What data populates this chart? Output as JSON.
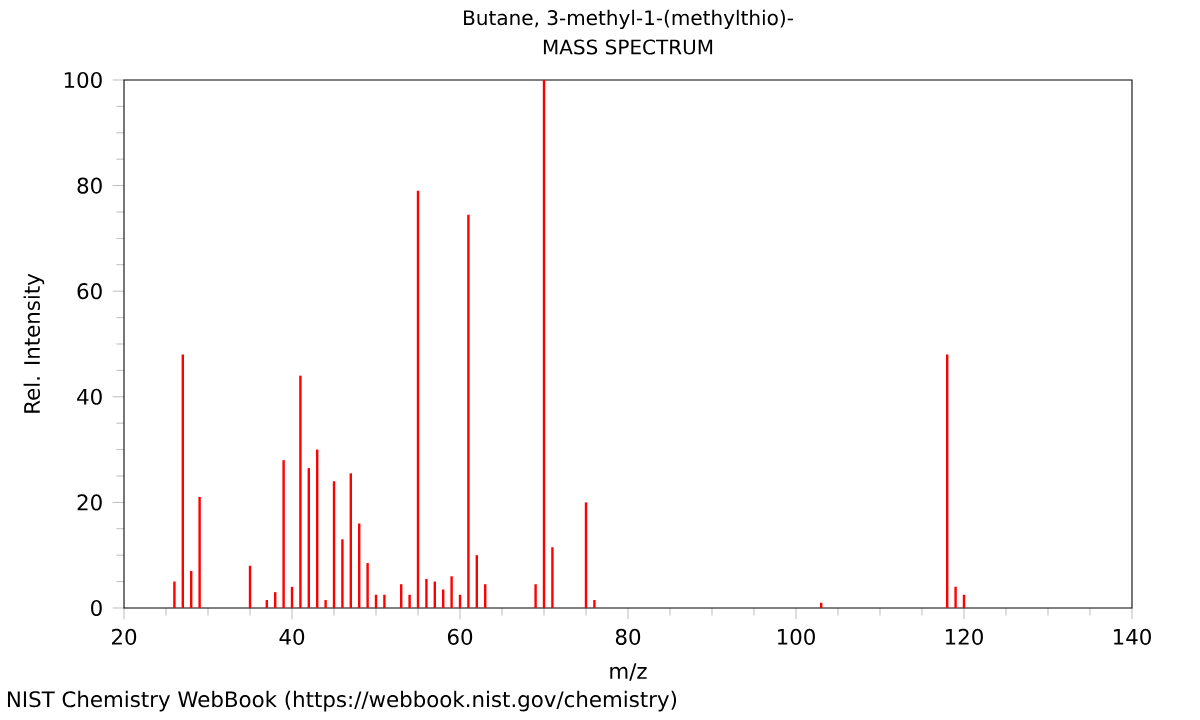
{
  "chart_data": {
    "type": "bar",
    "title": "Butane, 3-methyl-1-(methylthio)-",
    "subtitle": "MASS SPECTRUM",
    "xlabel": "m/z",
    "ylabel": "Rel. Intensity",
    "x": [
      26,
      27,
      28,
      29,
      35,
      37,
      38,
      39,
      40,
      41,
      42,
      43,
      44,
      45,
      46,
      47,
      48,
      49,
      50,
      51,
      53,
      54,
      55,
      56,
      57,
      58,
      59,
      60,
      61,
      62,
      63,
      69,
      70,
      71,
      75,
      76,
      103,
      118,
      119,
      120
    ],
    "values": [
      5,
      48,
      7,
      21,
      8,
      1.5,
      3,
      28,
      4,
      44,
      26.5,
      30,
      1.5,
      24,
      13,
      25.5,
      16,
      8.5,
      2.5,
      2.5,
      4.5,
      2.5,
      79,
      5.5,
      5,
      3.5,
      6,
      2.5,
      74.5,
      10,
      4.5,
      4.5,
      100,
      11.5,
      20,
      1.5,
      1,
      48,
      4,
      2.5
    ],
    "color": "#ff0000",
    "xlim": [
      20,
      140
    ],
    "xticks": [
      20,
      40,
      60,
      80,
      100,
      120,
      140
    ],
    "ylim": [
      0,
      100
    ],
    "yticks": [
      0,
      20,
      40,
      60,
      80,
      100
    ],
    "annotations": [
      "NIST Chemistry WebBook (https://webbook.nist.gov/chemistry)"
    ]
  }
}
